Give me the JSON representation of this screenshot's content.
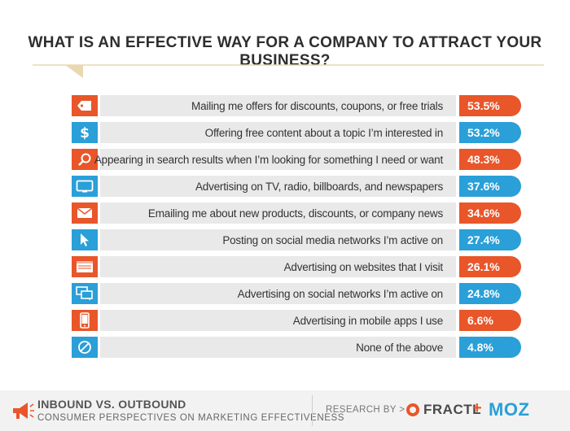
{
  "title": "WHAT IS AN EFFECTIVE WAY FOR A COMPANY TO ATTRACT YOUR BUSINESS?",
  "colors": {
    "orange": "#e8562a",
    "blue": "#2a9fd8",
    "label_bg": "#e9e9e9"
  },
  "chart_data": {
    "type": "bar",
    "orientation": "horizontal",
    "categories": [
      "Mailing me offers for discounts, coupons, or free trials",
      "Offering free content about a topic I’m interested in",
      "Appearing in search results when I’m looking for something I need or want",
      "Advertising on TV, radio, billboards, and newspapers",
      "Emailing me about new products, discounts, or company news",
      "Posting on social media networks I’m active on",
      "Advertising on websites that I visit",
      "Advertising on social networks I’m active on",
      "Advertising in mobile apps I use",
      "None of the above"
    ],
    "values": [
      53.5,
      53.2,
      48.3,
      37.6,
      34.6,
      27.4,
      26.1,
      24.8,
      6.6,
      4.8
    ],
    "value_labels": [
      "53.5%",
      "53.2%",
      "48.3%",
      "37.6%",
      "34.6%",
      "27.4%",
      "26.1%",
      "24.8%",
      "6.6%",
      "4.8%"
    ],
    "icons": [
      "tag-icon",
      "dollar-icon",
      "magnifier-icon",
      "tv-icon",
      "envelope-icon",
      "cursor-icon",
      "browser-icon",
      "chat-icon",
      "phone-icon",
      "no-icon"
    ],
    "row_colors": [
      "orange",
      "blue",
      "orange",
      "blue",
      "orange",
      "blue",
      "orange",
      "blue",
      "orange",
      "blue"
    ]
  },
  "footer": {
    "line1": "INBOUND VS. OUTBOUND",
    "line2": "CONSUMER PERSPECTIVES ON MARKETING EFFECTIVENESS",
    "research_by": "RESEARCH BY >",
    "fractl": "FRACTL",
    "plus": "+",
    "moz": "MOZ"
  }
}
